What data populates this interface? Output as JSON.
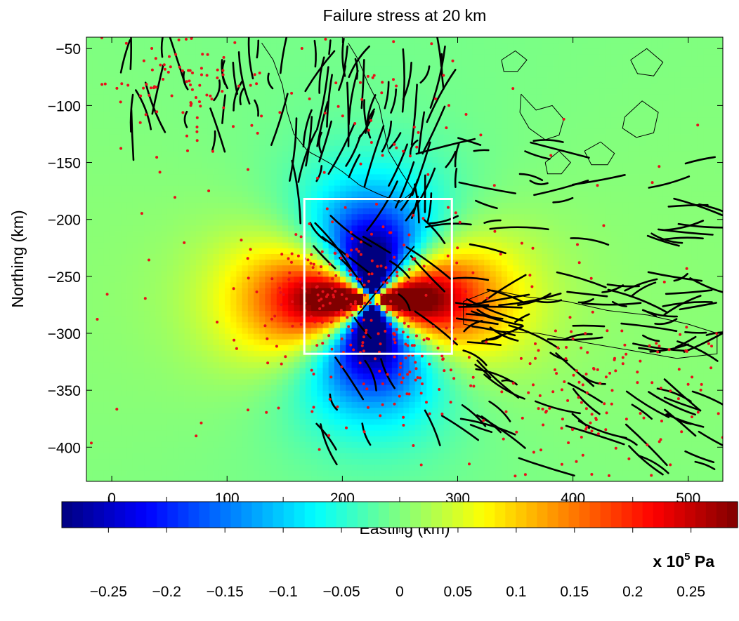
{
  "chart_data": {
    "type": "heatmap",
    "title": "Failure stress at 20 km",
    "xlabel": "Easting (km)",
    "ylabel": "Northing (km)",
    "xlim": [
      -22,
      530
    ],
    "ylim": [
      -430,
      -40
    ],
    "xticks": [
      0,
      100,
      200,
      300,
      400,
      500
    ],
    "yticks": [
      -50,
      -100,
      -150,
      -200,
      -250,
      -300,
      -350,
      -400
    ],
    "grid": false,
    "field": {
      "description_units": "x 10^5 Pa",
      "source_center": [
        226,
        -270
      ],
      "positive_lobes": "west and east",
      "negative_lobes": "north and south",
      "peak_positive": 0.29,
      "peak_negative": -0.29
    },
    "study_box": {
      "x": [
        167,
        295
      ],
      "y": [
        -318,
        -182
      ],
      "color": "#ffffff"
    },
    "colorbar": {
      "label_main": "x 10",
      "label_exp": "5",
      "label_unit": " Pa",
      "range": [
        -0.29,
        0.29
      ],
      "ticks": [
        -0.25,
        -0.2,
        -0.15,
        -0.1,
        -0.05,
        0,
        0.05,
        0.1,
        0.15,
        0.2,
        0.25
      ],
      "tick_labels": [
        "−0.25",
        "−0.2",
        "−0.15",
        "−0.1",
        "−0.05",
        "0",
        "0.05",
        "0.1",
        "0.15",
        "0.2",
        "0.25"
      ],
      "colormap": "jet"
    },
    "overlays": {
      "earthquakes_color": "#e8101a",
      "faults_color": "#000000",
      "coastline_color": "#000000"
    }
  }
}
